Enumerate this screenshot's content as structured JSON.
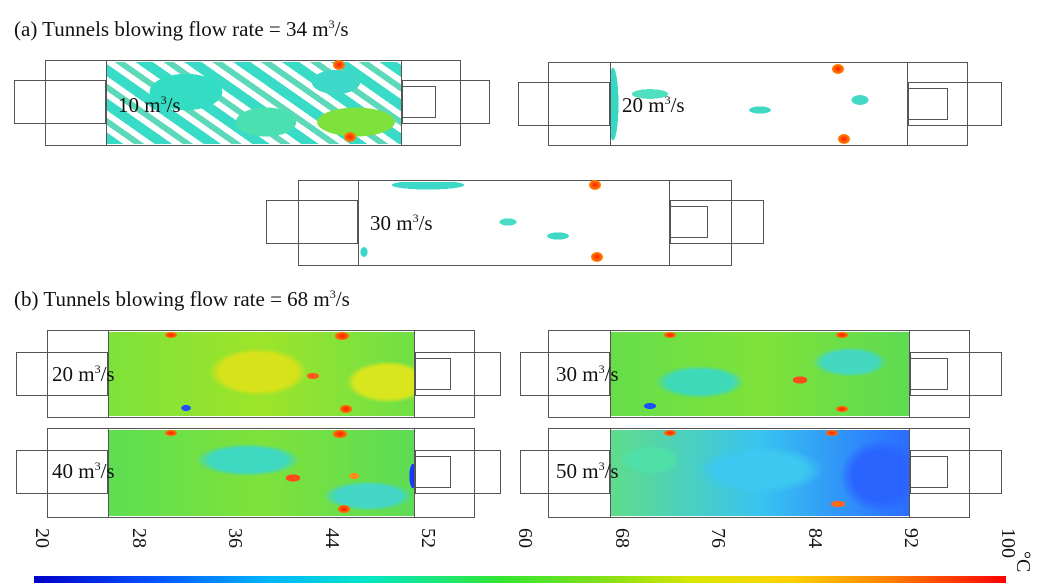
{
  "heading_a": {
    "prefix": "(a) Tunnels blowing flow rate = 34 m",
    "sup": "3",
    "suffix": "/s"
  },
  "heading_b": {
    "prefix": "(b) Tunnels blowing flow rate = 68 m",
    "sup": "3",
    "suffix": "/s"
  },
  "panels_a": [
    {
      "value": "10 m",
      "sup": "3",
      "unit": "/s"
    },
    {
      "value": "20 m",
      "sup": "3",
      "unit": "/s"
    },
    {
      "value": "30 m",
      "sup": "3",
      "unit": "/s"
    }
  ],
  "panels_b": [
    {
      "value": "20 m",
      "sup": "3",
      "unit": "/s"
    },
    {
      "value": "30 m",
      "sup": "3",
      "unit": "/s"
    },
    {
      "value": "40 m",
      "sup": "3",
      "unit": "/s"
    },
    {
      "value": "50 m",
      "sup": "3",
      "unit": "/s"
    }
  ],
  "scale": {
    "unit": "°C",
    "ticks": [
      "20",
      "28",
      "36",
      "44",
      "52",
      "60",
      "68",
      "76",
      "84",
      "92",
      "100"
    ],
    "colors": {
      "cold": "#0000c8",
      "mid": "#33e633",
      "hot": "#ff0000"
    }
  }
}
